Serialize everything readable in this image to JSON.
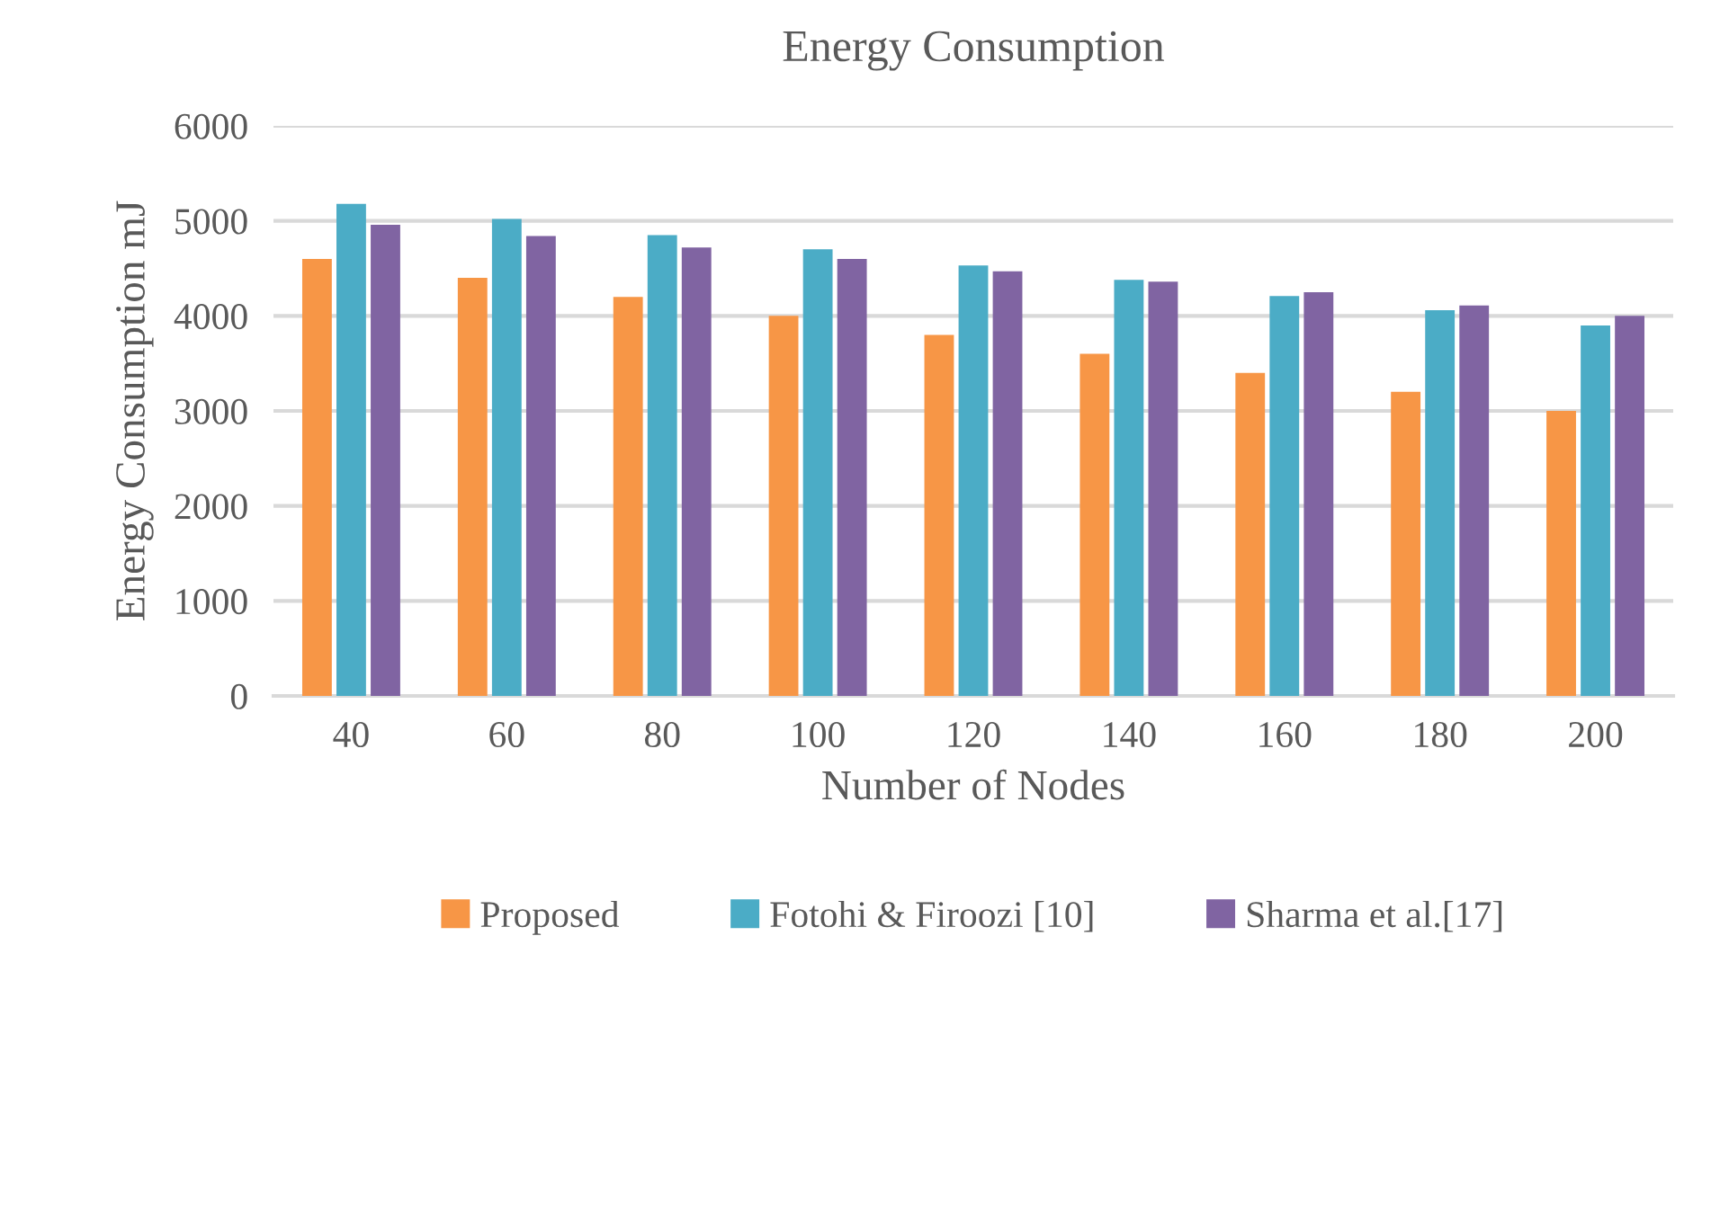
{
  "chart_data": {
    "type": "bar",
    "title": "Energy Consumption",
    "xlabel": "Number of Nodes",
    "ylabel": "Energy Consumption mJ",
    "categories": [
      "40",
      "60",
      "80",
      "100",
      "120",
      "140",
      "160",
      "180",
      "200"
    ],
    "series": [
      {
        "name": "Proposed",
        "color": "#f79646",
        "values": [
          4600,
          4400,
          4200,
          4000,
          3800,
          3600,
          3400,
          3200,
          3000
        ]
      },
      {
        "name": "Fotohi & Firoozi [10]",
        "color": "#4bacc6",
        "values": [
          5180,
          5020,
          4850,
          4700,
          4530,
          4380,
          4210,
          4060,
          3900
        ]
      },
      {
        "name": "Sharma et al.[17]",
        "color": "#8064a2",
        "values": [
          4960,
          4840,
          4720,
          4600,
          4470,
          4360,
          4250,
          4110,
          4000
        ]
      }
    ],
    "ylim": [
      0,
      6000
    ],
    "yticks": [
      0,
      1000,
      2000,
      3000,
      4000,
      5000,
      6000
    ],
    "grid": "y",
    "legend": "bottom"
  }
}
